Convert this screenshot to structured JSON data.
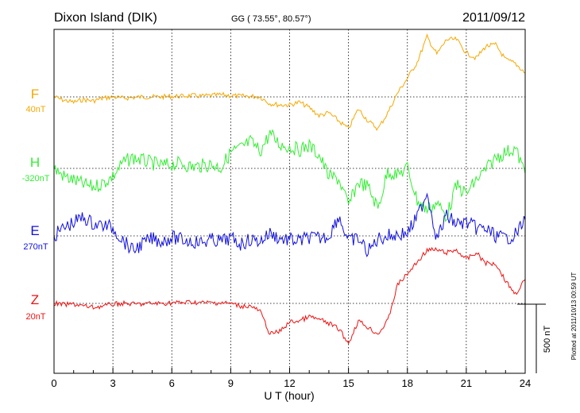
{
  "header": {
    "station": "Dixon Island (DIK)",
    "coords": "GG ( 73.55°,  80.57°)",
    "date": "2011/09/12"
  },
  "footer": {
    "plotted": "Plotted at 2011/10/13 00:59 UT",
    "scale_label": "500 nT"
  },
  "chart_data": {
    "type": "line",
    "xlabel": "U T (hour)",
    "xlim": [
      0,
      24
    ],
    "x_ticks": [
      "0",
      "3",
      "6",
      "9",
      "12",
      "15",
      "18",
      "21",
      "24"
    ],
    "grid": true,
    "series": [
      {
        "name": "F",
        "baseline_label": "40nT",
        "color": "#f5a800",
        "x": [
          0,
          0.5,
          1,
          1.5,
          2,
          2.5,
          3,
          3.5,
          4,
          4.5,
          5,
          5.5,
          6,
          6.5,
          7,
          7.5,
          8,
          8.5,
          9,
          9.5,
          10,
          10.5,
          11,
          11.5,
          12,
          12.5,
          13,
          13.5,
          14,
          14.5,
          15,
          15.5,
          16,
          16.5,
          17,
          17.5,
          18,
          18.5,
          19,
          19.5,
          20,
          20.5,
          21,
          21.5,
          22,
          22.5,
          23,
          23.5,
          24
        ],
        "values": [
          0,
          -25,
          -40,
          -20,
          -30,
          -10,
          0,
          -10,
          -5,
          0,
          0,
          0,
          5,
          5,
          10,
          5,
          10,
          15,
          10,
          5,
          5,
          0,
          -50,
          -60,
          -60,
          -40,
          -80,
          -140,
          -120,
          -180,
          -240,
          -90,
          -180,
          -240,
          -120,
          30,
          140,
          260,
          450,
          320,
          430,
          430,
          330,
          290,
          380,
          390,
          280,
          250,
          180
        ]
      },
      {
        "name": "H",
        "baseline_label": "-320nT",
        "color": "#33ee33",
        "x": [
          0,
          0.5,
          1,
          1.5,
          2,
          2.5,
          3,
          3.5,
          4,
          4.5,
          5,
          5.5,
          6,
          6.5,
          7,
          7.5,
          8,
          8.5,
          9,
          9.5,
          10,
          10.5,
          11,
          11.5,
          12,
          12.5,
          13,
          13.5,
          14,
          14.5,
          15,
          15.5,
          16,
          16.5,
          17,
          17.5,
          18,
          18.5,
          19,
          19.5,
          20,
          20.5,
          21,
          21.5,
          22,
          22.5,
          23,
          23.5,
          24
        ],
        "values": [
          0,
          -60,
          -90,
          -120,
          -140,
          -110,
          -60,
          40,
          80,
          60,
          40,
          20,
          30,
          40,
          10,
          20,
          30,
          5,
          120,
          150,
          200,
          130,
          260,
          180,
          160,
          140,
          170,
          100,
          -60,
          -80,
          -280,
          -100,
          -140,
          -300,
          -20,
          -50,
          5,
          -240,
          -310,
          -260,
          -360,
          -130,
          -190,
          -90,
          -10,
          80,
          120,
          150,
          -40
        ]
      },
      {
        "name": "E",
        "baseline_label": "270nT",
        "color": "#1010dd",
        "x": [
          0,
          0.5,
          1,
          1.5,
          2,
          2.5,
          3,
          3.5,
          4,
          4.5,
          5,
          5.5,
          6,
          6.5,
          7,
          7.5,
          8,
          8.5,
          9,
          9.5,
          10,
          10.5,
          11,
          11.5,
          12,
          12.5,
          13,
          13.5,
          14,
          14.5,
          15,
          15.5,
          16,
          16.5,
          17,
          17.5,
          18,
          18.5,
          19,
          19.5,
          20,
          20.5,
          21,
          21.5,
          22,
          22.5,
          23,
          23.5,
          24
        ],
        "values": [
          0,
          60,
          100,
          140,
          90,
          80,
          60,
          -30,
          -110,
          -60,
          -20,
          -40,
          -10,
          -30,
          -40,
          -50,
          -30,
          -40,
          -20,
          -60,
          -30,
          -40,
          20,
          -20,
          -30,
          -40,
          -10,
          -20,
          0,
          150,
          -40,
          -20,
          -120,
          -20,
          0,
          10,
          20,
          140,
          330,
          -20,
          150,
          90,
          100,
          60,
          50,
          0,
          -20,
          10,
          120
        ]
      },
      {
        "name": "Z",
        "baseline_label": "20nT",
        "color": "#ee1111",
        "x": [
          0,
          0.5,
          1,
          1.5,
          2,
          2.5,
          3,
          3.5,
          4,
          4.5,
          5,
          5.5,
          6,
          6.5,
          7,
          7.5,
          8,
          8.5,
          9,
          9.5,
          10,
          10.5,
          11,
          11.5,
          12,
          12.5,
          13,
          13.5,
          14,
          14.5,
          15,
          15.5,
          16,
          16.5,
          17,
          17.5,
          18,
          18.5,
          19,
          19.5,
          20,
          20.5,
          21,
          21.5,
          22,
          22.5,
          23,
          23.5,
          24
        ],
        "values": [
          0,
          -10,
          -5,
          -20,
          -30,
          -20,
          -5,
          0,
          -5,
          -5,
          0,
          0,
          5,
          5,
          10,
          5,
          5,
          5,
          0,
          -20,
          -20,
          -60,
          -230,
          -210,
          -140,
          -130,
          -100,
          -120,
          -150,
          -190,
          -300,
          -130,
          -180,
          -230,
          -130,
          140,
          220,
          310,
          400,
          400,
          380,
          400,
          330,
          380,
          300,
          300,
          170,
          70,
          180
        ]
      }
    ],
    "yscale": {
      "nT_per_px": 5.9524,
      "bar_nT": 500
    },
    "baselines_row": {
      "F": 122,
      "H": 212,
      "E": 297,
      "Z": 382
    }
  }
}
